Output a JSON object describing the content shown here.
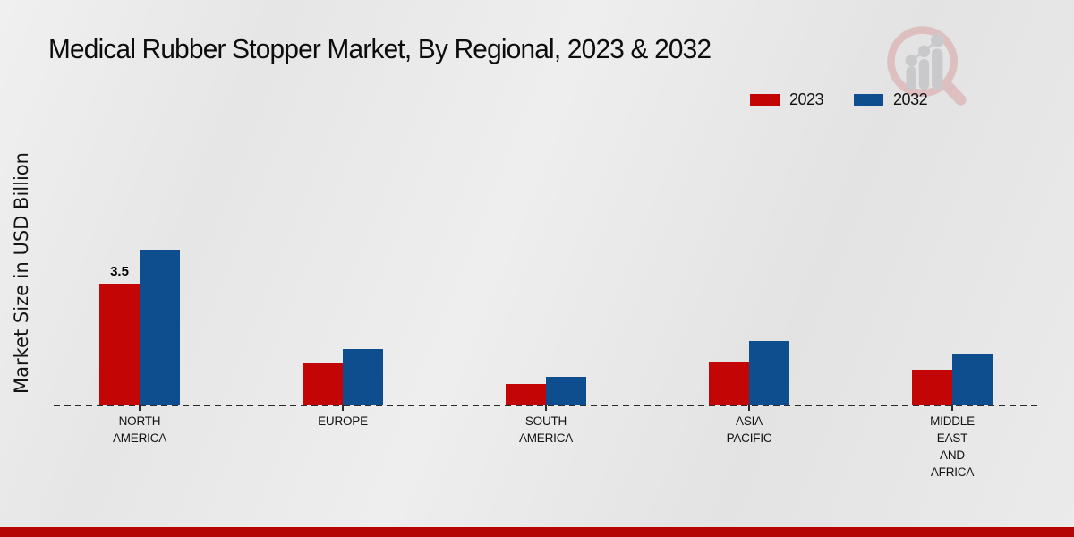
{
  "header": {
    "title": "Medical Rubber Stopper Market, By Regional, 2023 & 2032"
  },
  "legend": {
    "items": [
      {
        "label": "2023",
        "color": "#c40505"
      },
      {
        "label": "2032",
        "color": "#0e4d8e"
      }
    ]
  },
  "chart_data": {
    "type": "bar",
    "title": "Medical Rubber Stopper Market, By Regional, 2023 & 2032",
    "xlabel": "",
    "ylabel": "Market Size in USD Billion",
    "categories": [
      "NORTH AMERICA",
      "EUROPE",
      "SOUTH AMERICA",
      "ASIA PACIFIC",
      "MIDDLE EAST AND AFRICA"
    ],
    "series": [
      {
        "name": "2023",
        "color": "#c40505",
        "values": [
          3.5,
          1.2,
          0.6,
          1.25,
          1.0
        ]
      },
      {
        "name": "2032",
        "color": "#0e4d8e",
        "values": [
          4.5,
          1.6,
          0.8,
          1.85,
          1.45
        ]
      }
    ],
    "annotations": [
      {
        "series": "2023",
        "category": "NORTH AMERICA",
        "text": "3.5"
      }
    ],
    "ylim": [
      0,
      5
    ],
    "grid": false,
    "legend_position": "top-right",
    "baseline_style": "dashed"
  },
  "branding": {
    "logo_icon": "magnifier-bar-chart-logo",
    "logo_circle_color": "#d9a2a2",
    "logo_bars_color": "#b4b4b8"
  },
  "footer": {
    "bar_color": "#b60505"
  }
}
